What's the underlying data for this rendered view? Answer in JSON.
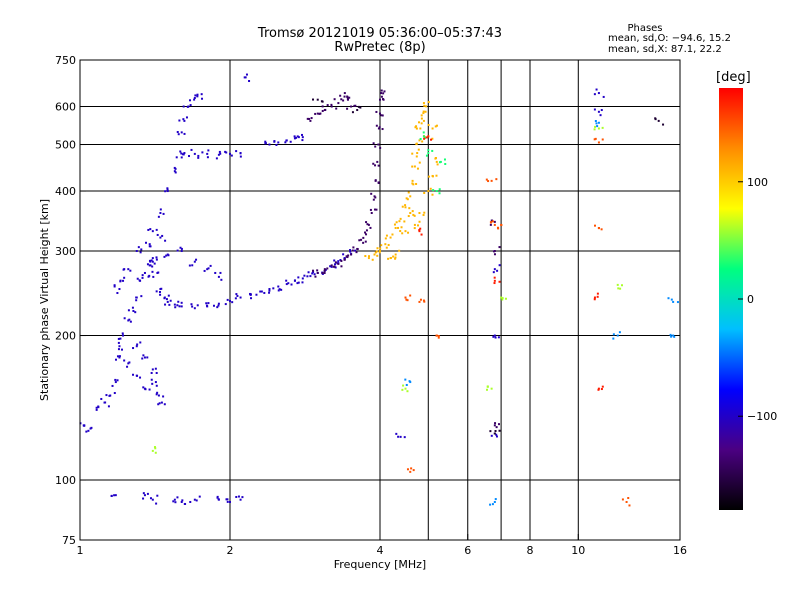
{
  "title": "Tromsø 20121019 05:36:00–05:37:43",
  "subtitle": "RwPretec (8p)",
  "stats": {
    "heading": "Phases",
    "line1": "mean, sd,O: −94.6, 15.2",
    "line2": "mean, sd,X:  87.1, 22.2"
  },
  "chart_data": {
    "type": "scatter",
    "title": "Tromsø 20121019 05:36:00–05:37:43",
    "subtitle": "RwPretec (8p)",
    "xlabel": "Frequency [MHz]",
    "ylabel": "Stationary phase Virtual Height [km]",
    "x_scale": "log",
    "y_scale": "log",
    "xlim": [
      1,
      16
    ],
    "ylim": [
      75,
      750
    ],
    "x_ticks": [
      1,
      2,
      4,
      6,
      8,
      10,
      16
    ],
    "x_tick_labels": [
      "1",
      "2",
      "4",
      "6",
      "8",
      "10",
      "16"
    ],
    "x_gridlines": [
      2,
      4,
      5,
      6,
      7,
      8,
      10
    ],
    "y_ticks": [
      75,
      100,
      200,
      300,
      400,
      500,
      600,
      750
    ],
    "y_tick_labels": [
      "75",
      "100",
      "200",
      "300",
      "400",
      "500",
      "600",
      "750"
    ],
    "y_gridlines": [
      100,
      200,
      300,
      400,
      500,
      600
    ],
    "grid": true,
    "colorbar": {
      "label": "[deg]",
      "range": [
        -180,
        180
      ],
      "ticks": [
        100,
        0,
        -100
      ],
      "tick_labels": [
        "100",
        "0",
        "−100"
      ],
      "colormap": [
        "#000000",
        "#4b0082",
        "#0000ff",
        "#00bfff",
        "#00ff7f",
        "#ffff00",
        "#ff8c00",
        "#ff0000"
      ]
    },
    "series": [
      {
        "phase": -100,
        "points": [
          [
            1.02,
            130
          ],
          [
            1.05,
            128
          ],
          [
            1.08,
            140
          ],
          [
            1.12,
            145
          ],
          [
            1.15,
            150
          ],
          [
            1.18,
            160
          ],
          [
            1.2,
            180
          ],
          [
            1.22,
            200
          ],
          [
            1.25,
            215
          ],
          [
            1.28,
            225
          ],
          [
            1.3,
            240
          ],
          [
            1.32,
            260
          ],
          [
            1.35,
            270
          ],
          [
            1.38,
            280
          ],
          [
            1.4,
            285
          ],
          [
            1.43,
            270
          ],
          [
            1.45,
            250
          ],
          [
            1.48,
            240
          ],
          [
            1.5,
            235
          ],
          [
            1.55,
            232
          ],
          [
            1.6,
            230
          ],
          [
            1.7,
            228
          ],
          [
            1.8,
            230
          ],
          [
            1.9,
            233
          ],
          [
            2.0,
            236
          ],
          [
            2.1,
            240
          ],
          [
            2.2,
            243
          ],
          [
            2.3,
            247
          ],
          [
            2.4,
            250
          ],
          [
            2.5,
            253
          ],
          [
            2.6,
            256
          ],
          [
            2.7,
            260
          ],
          [
            2.8,
            263
          ],
          [
            2.9,
            266
          ],
          [
            3.0,
            270
          ],
          [
            3.1,
            273
          ],
          [
            3.2,
            278
          ],
          [
            3.3,
            283
          ],
          [
            3.4,
            290
          ],
          [
            3.5,
            296
          ],
          [
            1.3,
            190
          ],
          [
            1.35,
            180
          ],
          [
            1.4,
            170
          ],
          [
            1.42,
            160
          ],
          [
            1.44,
            150
          ],
          [
            1.46,
            145
          ],
          [
            1.35,
            155
          ],
          [
            1.3,
            165
          ],
          [
            1.25,
            175
          ],
          [
            1.2,
            190
          ],
          [
            1.4,
            330
          ],
          [
            1.45,
            360
          ],
          [
            1.5,
            400
          ],
          [
            1.55,
            440
          ],
          [
            1.6,
            470
          ],
          [
            1.62,
            480
          ],
          [
            1.7,
            478
          ],
          [
            1.8,
            478
          ],
          [
            1.9,
            476
          ],
          [
            2.0,
            478
          ],
          [
            2.1,
            480
          ],
          [
            2.4,
            500
          ],
          [
            2.5,
            505
          ],
          [
            2.6,
            510
          ],
          [
            2.7,
            515
          ],
          [
            2.8,
            518
          ],
          [
            1.6,
            530
          ],
          [
            1.62,
            560
          ],
          [
            1.65,
            600
          ],
          [
            1.7,
            625
          ],
          [
            1.72,
            630
          ],
          [
            1.4,
            290
          ],
          [
            1.5,
            295
          ],
          [
            1.6,
            300
          ],
          [
            1.7,
            285
          ],
          [
            1.8,
            275
          ],
          [
            1.9,
            265
          ],
          [
            1.2,
            250
          ],
          [
            1.22,
            260
          ],
          [
            1.25,
            275
          ],
          [
            1.3,
            300
          ],
          [
            1.38,
            310
          ],
          [
            1.45,
            320
          ],
          [
            1.35,
            93
          ],
          [
            1.4,
            91
          ],
          [
            1.55,
            91
          ],
          [
            1.6,
            90
          ],
          [
            1.7,
            91
          ],
          [
            1.9,
            91
          ],
          [
            2.0,
            90
          ],
          [
            2.1,
            91
          ],
          [
            1.18,
            93
          ],
          [
            2.15,
            690
          ],
          [
            4.4,
            123
          ],
          [
            6.8,
            125
          ],
          [
            6.8,
            200
          ],
          [
            6.8,
            275
          ],
          [
            11.0,
            640
          ],
          [
            11.0,
            585
          ]
        ]
      },
      {
        "phase": -140,
        "points": [
          [
            3.3,
            282
          ],
          [
            3.4,
            288
          ],
          [
            3.5,
            295
          ],
          [
            3.6,
            303
          ],
          [
            3.7,
            312
          ],
          [
            3.75,
            325
          ],
          [
            3.8,
            340
          ],
          [
            3.85,
            360
          ],
          [
            3.9,
            390
          ],
          [
            3.92,
            420
          ],
          [
            3.95,
            460
          ],
          [
            3.97,
            500
          ],
          [
            3.98,
            540
          ],
          [
            4.0,
            580
          ],
          [
            4.0,
            620
          ],
          [
            4.02,
            640
          ],
          [
            3.5,
            600
          ],
          [
            3.45,
            620
          ],
          [
            3.4,
            640
          ],
          [
            3.3,
            610
          ],
          [
            3.2,
            600
          ],
          [
            3.1,
            590
          ],
          [
            3.0,
            580
          ],
          [
            2.9,
            560
          ],
          [
            3.0,
            270
          ],
          [
            3.1,
            275
          ],
          [
            3.2,
            280
          ],
          [
            6.8,
            130
          ],
          [
            6.8,
            345
          ],
          [
            6.8,
            300
          ]
        ]
      },
      {
        "phase": 110,
        "points": [
          [
            4.0,
            300
          ],
          [
            4.1,
            310
          ],
          [
            4.2,
            320
          ],
          [
            4.3,
            335
          ],
          [
            4.4,
            350
          ],
          [
            4.5,
            370
          ],
          [
            4.6,
            390
          ],
          [
            4.65,
            420
          ],
          [
            4.7,
            450
          ],
          [
            4.75,
            480
          ],
          [
            4.8,
            510
          ],
          [
            4.82,
            540
          ],
          [
            4.85,
            575
          ],
          [
            4.9,
            610
          ],
          [
            4.2,
            290
          ],
          [
            4.3,
            295
          ],
          [
            4.5,
            330
          ],
          [
            4.6,
            360
          ],
          [
            5.0,
            400
          ],
          [
            5.1,
            430
          ],
          [
            5.2,
            460
          ],
          [
            5.0,
            520
          ],
          [
            5.1,
            540
          ],
          [
            4.9,
            560
          ],
          [
            4.7,
            340
          ],
          [
            4.8,
            360
          ],
          [
            3.8,
            290
          ],
          [
            3.9,
            295
          ]
        ]
      },
      {
        "phase": 30,
        "points": [
          [
            5.2,
            400
          ],
          [
            5.3,
            460
          ],
          [
            5.0,
            480
          ],
          [
            4.9,
            520
          ]
        ]
      },
      {
        "phase": 150,
        "points": [
          [
            4.6,
            104
          ],
          [
            6.7,
            420
          ],
          [
            6.8,
            340
          ],
          [
            7.0,
            340
          ],
          [
            4.5,
            240
          ],
          [
            4.8,
            235
          ],
          [
            5.2,
            200
          ],
          [
            11.0,
            505
          ],
          [
            11.0,
            335
          ],
          [
            12.5,
            90
          ]
        ]
      },
      {
        "phase": 170,
        "points": [
          [
            4.8,
            330
          ],
          [
            6.8,
            260
          ],
          [
            10.8,
            240
          ],
          [
            11.0,
            155
          ],
          [
            5.0,
            520
          ]
        ]
      },
      {
        "phase": 60,
        "points": [
          [
            1.4,
            115
          ],
          [
            6.7,
            155
          ],
          [
            7.0,
            240
          ],
          [
            12.0,
            255
          ],
          [
            4.5,
            155
          ],
          [
            11.0,
            540
          ]
        ]
      },
      {
        "phase": -40,
        "points": [
          [
            6.8,
            90
          ],
          [
            11.0,
            555
          ],
          [
            4.6,
            160
          ],
          [
            15.5,
            235
          ],
          [
            15.5,
            200
          ],
          [
            12.0,
            200
          ]
        ]
      },
      {
        "phase": -160,
        "points": [
          [
            6.8,
            125
          ],
          [
            14.5,
            560
          ],
          [
            3.0,
            620
          ],
          [
            3.6,
            590
          ]
        ]
      }
    ]
  }
}
